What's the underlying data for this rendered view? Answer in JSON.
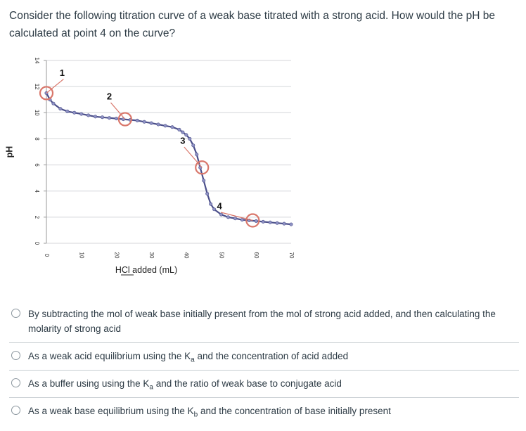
{
  "question": {
    "text": "Consider the following titration curve of a weak base titrated with a strong acid.  How would the pH be calculated at point 4 on the curve?"
  },
  "chart_data": {
    "type": "line",
    "title": "",
    "xlabel": "HCl added (mL)",
    "ylabel": "pH",
    "xlim": [
      0,
      70
    ],
    "ylim": [
      0,
      14
    ],
    "xticks": [
      "0",
      "10",
      "20",
      "30",
      "40",
      "50",
      "60",
      "70"
    ],
    "yticks": [
      "0",
      "2",
      "4",
      "6",
      "8",
      "10",
      "12",
      "14"
    ],
    "grid": true,
    "series": [
      {
        "color": "#4b4f8a",
        "x": [
          0,
          1,
          2,
          4,
          6,
          8,
          10,
          12,
          14,
          16,
          18,
          20,
          22,
          24,
          26,
          28,
          30,
          32,
          34,
          36,
          38,
          39,
          40,
          41,
          42,
          43,
          44,
          45,
          46,
          47,
          48,
          50,
          52,
          54,
          56,
          58,
          60,
          62,
          64,
          66,
          68,
          70
        ],
        "y": [
          11.5,
          11.0,
          10.7,
          10.3,
          10.1,
          10.0,
          9.9,
          9.8,
          9.7,
          9.65,
          9.6,
          9.55,
          9.5,
          9.45,
          9.4,
          9.3,
          9.2,
          9.1,
          9.0,
          8.9,
          8.7,
          8.5,
          8.3,
          8.0,
          7.5,
          6.8,
          5.8,
          4.8,
          3.8,
          3.0,
          2.6,
          2.2,
          2.0,
          1.9,
          1.8,
          1.75,
          1.7,
          1.65,
          1.6,
          1.55,
          1.5,
          1.45
        ]
      }
    ],
    "highlighted_points": [
      {
        "label": "1",
        "x": 0,
        "y": 11.5,
        "label_x": 4.5,
        "label_y": 13.0
      },
      {
        "label": "2",
        "x": 22.5,
        "y": 9.5,
        "label_x": 18,
        "label_y": 11.2
      },
      {
        "label": "3",
        "x": 44.5,
        "y": 5.8,
        "label_x": 39,
        "label_y": 7.8
      },
      {
        "label": "4",
        "x": 59,
        "y": 1.75,
        "label_x": 49.5,
        "label_y": 2.8
      }
    ],
    "highlight_color": "#d9776b"
  },
  "options": [
    {
      "text": "By subtracting the mol of weak base initially present from the mol of strong acid added, and then calculating the molarity of strong acid"
    },
    {
      "before": "As a weak acid equilibrium using the K",
      "sub": "a",
      "after": " and the concentration of acid added"
    },
    {
      "before": "As a buffer using using the K",
      "sub": "a",
      "after": " and the ratio of weak base to conjugate acid"
    },
    {
      "before": "As a weak base equilibrium using the K",
      "sub": "b",
      "after": " and the concentration of base initially present"
    }
  ]
}
